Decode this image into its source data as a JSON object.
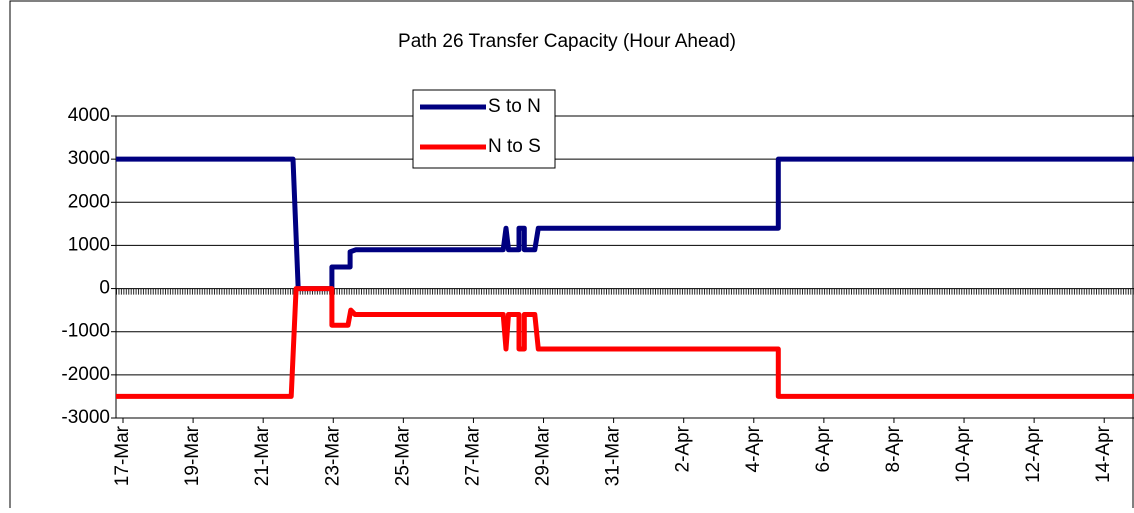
{
  "chart_data": {
    "type": "line",
    "title": "Path 26 Transfer Capacity (Hour Ahead)",
    "xlim": [
      -0.2,
      28.85
    ],
    "xticks": [
      {
        "value": 0,
        "label": "17-Mar"
      },
      {
        "value": 2,
        "label": "19-Mar"
      },
      {
        "value": 4,
        "label": "21-Mar"
      },
      {
        "value": 6,
        "label": "23-Mar"
      },
      {
        "value": 8,
        "label": "25-Mar"
      },
      {
        "value": 10,
        "label": "27-Mar"
      },
      {
        "value": 12,
        "label": "29-Mar"
      },
      {
        "value": 14,
        "label": "31-Mar"
      },
      {
        "value": 16,
        "label": "2-Apr"
      },
      {
        "value": 18,
        "label": "4-Apr"
      },
      {
        "value": 20,
        "label": "6-Apr"
      },
      {
        "value": 22,
        "label": "8-Apr"
      },
      {
        "value": 24,
        "label": "10-Apr"
      },
      {
        "value": 26,
        "label": "12-Apr"
      },
      {
        "value": 28,
        "label": "14-Apr"
      }
    ],
    "ylim": [
      -3000,
      4000
    ],
    "yticks": [
      4000,
      3000,
      2000,
      1000,
      0,
      -1000,
      -2000,
      -3000
    ],
    "grid": true,
    "series": [
      {
        "name": "S to N",
        "color": "#000080",
        "x": [
          -0.2,
          4.85,
          5.0,
          5.96,
          5.96,
          6.48,
          6.48,
          6.65,
          10.85,
          10.93,
          11.0,
          11.05,
          11.3,
          11.3,
          11.45,
          11.45,
          11.75,
          11.85,
          18.7,
          18.7,
          28.85
        ],
        "values": [
          3000,
          3000,
          0,
          0,
          500,
          500,
          850,
          900,
          900,
          1400,
          900,
          900,
          900,
          1400,
          1400,
          900,
          900,
          1400,
          1400,
          3000,
          3000
        ]
      },
      {
        "name": "N to S",
        "color": "#ff0000",
        "x": [
          -0.2,
          4.8,
          4.94,
          5.96,
          5.96,
          6.42,
          6.5,
          6.62,
          10.85,
          10.93,
          11.0,
          11.05,
          11.3,
          11.3,
          11.45,
          11.45,
          11.75,
          11.85,
          18.7,
          18.7,
          28.85
        ],
        "values": [
          -2500,
          -2500,
          0,
          0,
          -850,
          -850,
          -500,
          -600,
          -600,
          -1400,
          -600,
          -600,
          -600,
          -1400,
          -1400,
          -600,
          -600,
          -1400,
          -1400,
          -2500,
          -2500
        ]
      }
    ]
  }
}
